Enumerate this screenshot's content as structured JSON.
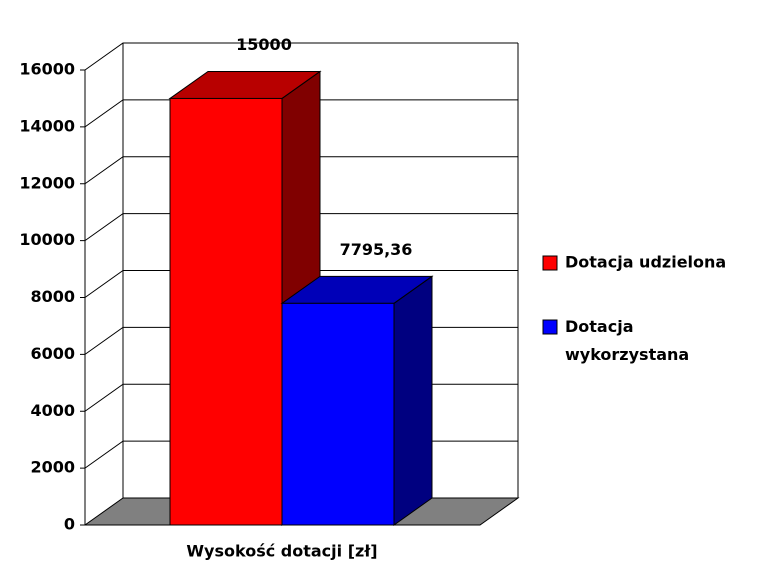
{
  "chart_data": {
    "type": "bar3d",
    "categories": [
      "Wysokość dotacji [zł]"
    ],
    "series": [
      {
        "name": "Dotacja udzielona",
        "color": "#ff0000",
        "values": [
          15000
        ],
        "value_labels": [
          "15000"
        ]
      },
      {
        "name": "Dotacja wykorzystana",
        "color": "#0000ff",
        "values": [
          7795.36
        ],
        "value_labels": [
          "7795,36"
        ]
      }
    ],
    "ylim": [
      0,
      16000
    ],
    "yticks": [
      0,
      2000,
      4000,
      6000,
      8000,
      10000,
      12000,
      14000,
      16000
    ],
    "grid": true,
    "legend": "right"
  }
}
